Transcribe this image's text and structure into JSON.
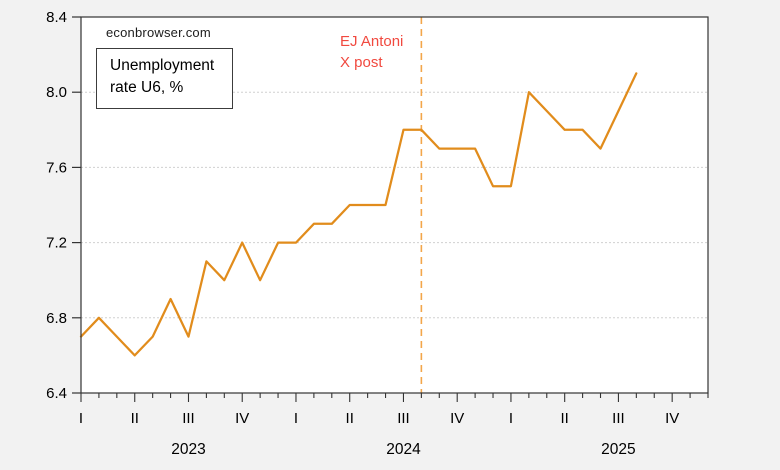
{
  "page": {
    "background_color": "#f2f2f2",
    "plot_background_color": "#ffffff"
  },
  "watermark": "econbrowser.com",
  "legend": {
    "line1": "Unemployment",
    "line2": "rate U6, %"
  },
  "annotation": {
    "line1": "EJ Antoni",
    "line2": "X post",
    "color": "#f1493f"
  },
  "colors": {
    "series_line": "#e18c1c",
    "event_vline": "#f3a64a",
    "annotation_text": "#f1493f",
    "gridline": "#d0d0d0",
    "axis_frame": "#333333",
    "axis_text": "#000000"
  },
  "chart_data": {
    "type": "line",
    "title": "",
    "xlabel": "",
    "ylabel": "",
    "ylim": [
      6.4,
      8.4
    ],
    "yticks": [
      6.4,
      6.8,
      7.2,
      7.6,
      8.0,
      8.4
    ],
    "grid": "horizontal dotted at interior yticks",
    "legend_position": "top-left boxed",
    "x_axis_total_months": 36,
    "x_axis_range": [
      "2023-01",
      "2025-12"
    ],
    "x": [
      "2023-01",
      "2023-02",
      "2023-03",
      "2023-04",
      "2023-05",
      "2023-06",
      "2023-07",
      "2023-08",
      "2023-09",
      "2023-10",
      "2023-11",
      "2023-12",
      "2024-01",
      "2024-02",
      "2024-03",
      "2024-04",
      "2024-05",
      "2024-06",
      "2024-07",
      "2024-08",
      "2024-09",
      "2024-10",
      "2024-11",
      "2024-12",
      "2025-01",
      "2025-02",
      "2025-03",
      "2025-04",
      "2025-05",
      "2025-06",
      "2025-07",
      "2025-08"
    ],
    "series": [
      {
        "name": "Unemployment rate U6, %",
        "color": "#e18c1c",
        "values": [
          6.7,
          6.8,
          6.7,
          6.6,
          6.7,
          6.9,
          6.7,
          7.1,
          7.0,
          7.2,
          7.0,
          7.2,
          7.2,
          7.3,
          7.3,
          7.4,
          7.4,
          7.4,
          7.8,
          7.8,
          7.7,
          7.7,
          7.7,
          7.5,
          7.5,
          8.0,
          7.9,
          7.8,
          7.8,
          7.7,
          7.9,
          8.1
        ]
      }
    ],
    "x_quarter_ticks": [
      {
        "label": "I",
        "month_index": 0
      },
      {
        "label": "II",
        "month_index": 3
      },
      {
        "label": "III",
        "month_index": 6
      },
      {
        "label": "IV",
        "month_index": 9
      },
      {
        "label": "I",
        "month_index": 12
      },
      {
        "label": "II",
        "month_index": 15
      },
      {
        "label": "III",
        "month_index": 18
      },
      {
        "label": "IV",
        "month_index": 21
      },
      {
        "label": "I",
        "month_index": 24
      },
      {
        "label": "II",
        "month_index": 27
      },
      {
        "label": "III",
        "month_index": 30
      },
      {
        "label": "IV",
        "month_index": 33
      }
    ],
    "x_year_labels": [
      {
        "label": "2023",
        "month_index": 6
      },
      {
        "label": "2024",
        "month_index": 18
      },
      {
        "label": "2025",
        "month_index": 30
      }
    ],
    "vline": {
      "month": "2024-08",
      "month_index": 19,
      "style": "dashed",
      "color": "#f3a64a",
      "label": "EJ Antoni X post"
    }
  }
}
